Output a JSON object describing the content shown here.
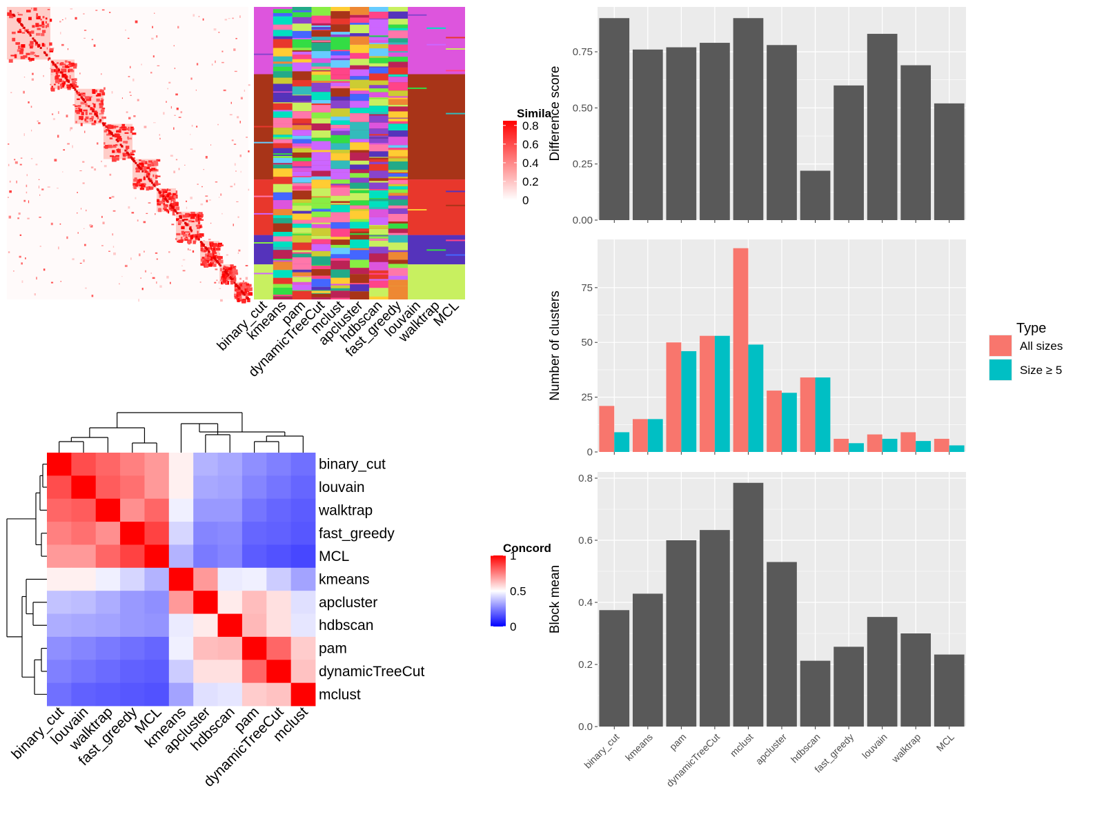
{
  "methods_top_heatmap": [
    "binary_cut",
    "kmeans",
    "pam",
    "dynamicTreeCut",
    "mclust",
    "apcluster",
    "hdbscan",
    "fast_greedy",
    "louvain",
    "walktrap",
    "MCL"
  ],
  "similarity_legend": {
    "title": "Simila",
    "ticks": [
      {
        "label": "0.8",
        "value": 0.8
      },
      {
        "label": "0.6",
        "value": 0.6
      },
      {
        "label": "0.4",
        "value": 0.4
      },
      {
        "label": "0.2",
        "value": 0.2
      },
      {
        "label": "0",
        "value": 0
      }
    ],
    "colors": {
      "low": "#ffffff",
      "high": "#ff0000"
    }
  },
  "concordance_legend": {
    "title": "Concord",
    "ticks": [
      {
        "label": "1",
        "value": 1
      },
      {
        "label": "0.5",
        "value": 0.5
      },
      {
        "label": "0",
        "value": 0
      }
    ],
    "colors": {
      "low": "#0000ff",
      "mid": "#ffffff",
      "high": "#ff0000"
    }
  },
  "cluster_palette": [
    "#dd55dd",
    "#a83418",
    "#e8372c",
    "#5533bb",
    "#c8f060",
    "#00e0c0",
    "#33dd44",
    "#ffcc33",
    "#22aa88",
    "#cc66ff",
    "#ff4488",
    "#66ccff",
    "#4466ff",
    "#ee8833",
    "#88ee44",
    "#bb2255",
    "#33bbbb",
    "#cccc33",
    "#8844cc",
    "#ff77aa"
  ],
  "chart_data": [
    {
      "type": "heatmap",
      "title": "",
      "row_labels": [
        "binary_cut",
        "louvain",
        "walktrap",
        "fast_greedy",
        "MCL",
        "kmeans",
        "apcluster",
        "hdbscan",
        "pam",
        "dynamicTreeCut",
        "mclust"
      ],
      "col_labels": [
        "binary_cut",
        "louvain",
        "walktrap",
        "fast_greedy",
        "MCL",
        "kmeans",
        "apcluster",
        "hdbscan",
        "pam",
        "dynamicTreeCut",
        "mclust"
      ],
      "values": [
        [
          1.0,
          0.85,
          0.8,
          0.75,
          0.7,
          0.53,
          0.35,
          0.33,
          0.28,
          0.25,
          0.22
        ],
        [
          0.85,
          1.0,
          0.82,
          0.78,
          0.7,
          0.53,
          0.33,
          0.32,
          0.26,
          0.23,
          0.2
        ],
        [
          0.8,
          0.82,
          1.0,
          0.72,
          0.8,
          0.47,
          0.3,
          0.3,
          0.23,
          0.2,
          0.18
        ],
        [
          0.75,
          0.78,
          0.72,
          1.0,
          0.87,
          0.42,
          0.26,
          0.27,
          0.2,
          0.19,
          0.17
        ],
        [
          0.7,
          0.7,
          0.8,
          0.87,
          1.0,
          0.35,
          0.24,
          0.26,
          0.18,
          0.16,
          0.14
        ],
        [
          0.53,
          0.53,
          0.47,
          0.42,
          0.35,
          1.0,
          0.7,
          0.46,
          0.47,
          0.4,
          0.32
        ],
        [
          0.38,
          0.37,
          0.34,
          0.3,
          0.28,
          0.7,
          1.0,
          0.54,
          0.63,
          0.56,
          0.44
        ],
        [
          0.34,
          0.33,
          0.32,
          0.3,
          0.29,
          0.46,
          0.54,
          1.0,
          0.64,
          0.56,
          0.45
        ],
        [
          0.28,
          0.26,
          0.24,
          0.22,
          0.2,
          0.47,
          0.63,
          0.64,
          1.0,
          0.8,
          0.6
        ],
        [
          0.25,
          0.23,
          0.21,
          0.19,
          0.18,
          0.4,
          0.56,
          0.56,
          0.8,
          1.0,
          0.62
        ],
        [
          0.22,
          0.19,
          0.18,
          0.17,
          0.16,
          0.32,
          0.44,
          0.45,
          0.6,
          0.62,
          1.0
        ]
      ],
      "scale": {
        "min": 0,
        "mid": 0.5,
        "max": 1
      },
      "legend_title": "Concord"
    },
    {
      "type": "bar",
      "title": "",
      "categories": [
        "binary_cut",
        "kmeans",
        "pam",
        "dynamicTreeCut",
        "mclust",
        "apcluster",
        "hdbscan",
        "fast_greedy",
        "louvain",
        "walktrap",
        "MCL"
      ],
      "values": [
        0.9,
        0.76,
        0.77,
        0.79,
        0.9,
        0.78,
        0.22,
        0.6,
        0.83,
        0.69,
        0.52
      ],
      "xlabel": "",
      "ylabel": "Difference score",
      "ylim": [
        0,
        0.95
      ],
      "yticks": [
        0.0,
        0.25,
        0.5,
        0.75
      ],
      "ytick_labels": [
        "0.00",
        "0.25",
        "0.50",
        "0.75"
      ],
      "grid": true
    },
    {
      "type": "bar",
      "title": "",
      "categories": [
        "binary_cut",
        "kmeans",
        "pam",
        "dynamicTreeCut",
        "mclust",
        "apcluster",
        "hdbscan",
        "fast_greedy",
        "louvain",
        "walktrap",
        "MCL"
      ],
      "series": [
        {
          "name": "All sizes",
          "values": [
            21,
            15,
            50,
            53,
            93,
            28,
            34,
            6,
            8,
            9,
            6
          ]
        },
        {
          "name": "Size ≥ 5",
          "values": [
            9,
            15,
            46,
            53,
            49,
            27,
            34,
            4,
            6,
            5,
            3
          ]
        }
      ],
      "colors": [
        "#f8766d",
        "#00bfc4"
      ],
      "xlabel": "",
      "ylabel": "Number of clusters",
      "ylim": [
        0,
        97
      ],
      "yticks": [
        0,
        25,
        50,
        75
      ],
      "ytick_labels": [
        "0",
        "25",
        "50",
        "75"
      ],
      "legend_title": "Type",
      "legend_position": "right",
      "grid": true
    },
    {
      "type": "bar",
      "title": "",
      "categories": [
        "binary_cut",
        "kmeans",
        "pam",
        "dynamicTreeCut",
        "mclust",
        "apcluster",
        "hdbscan",
        "fast_greedy",
        "louvain",
        "walktrap",
        "MCL"
      ],
      "values": [
        0.375,
        0.428,
        0.6,
        0.633,
        0.785,
        0.53,
        0.212,
        0.257,
        0.353,
        0.3,
        0.232
      ],
      "xlabel": "",
      "ylabel": "Block mean",
      "ylim": [
        0,
        0.82
      ],
      "yticks": [
        0.0,
        0.2,
        0.4,
        0.6,
        0.8
      ],
      "ytick_labels": [
        "0.0",
        "0.2",
        "0.4",
        "0.6",
        "0.8"
      ],
      "grid": true
    }
  ]
}
